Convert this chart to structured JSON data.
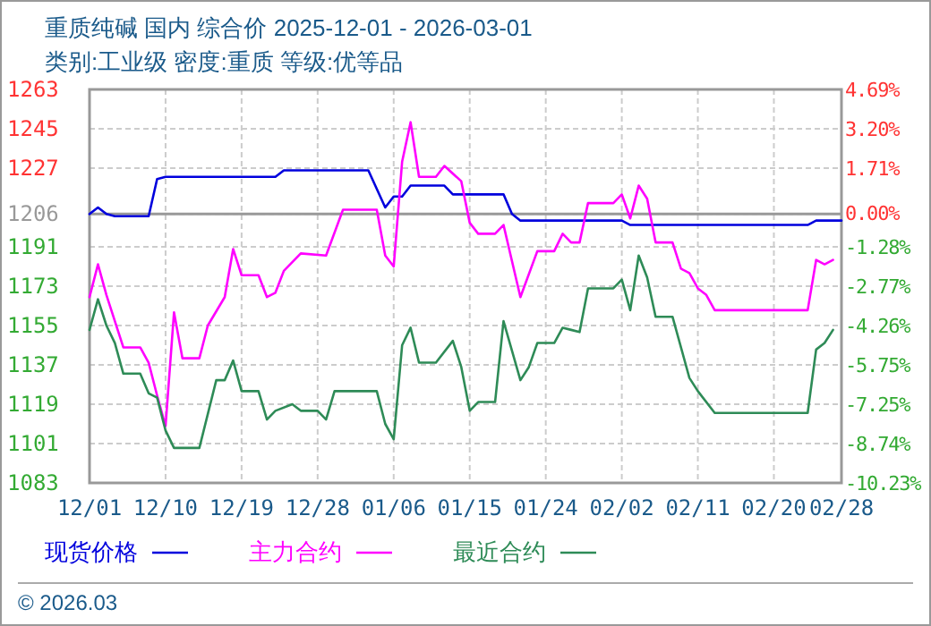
{
  "chart_data": {
    "type": "line",
    "title": "重质纯碱 国内 综合价 2025-12-01 - 2026-03-01",
    "subtitle": "类别:工业级 密度:重质 等级:优等品",
    "annotations": [
      "© 2026.03"
    ],
    "xlim": [
      "2025-12-01",
      "2026-02-28"
    ],
    "xticks": [
      {
        "value": "2025-12-01",
        "label": "12/01"
      },
      {
        "value": "2025-12-10",
        "label": "12/10"
      },
      {
        "value": "2025-12-19",
        "label": "12/19"
      },
      {
        "value": "2025-12-28",
        "label": "12/28"
      },
      {
        "value": "2026-01-06",
        "label": "01/06"
      },
      {
        "value": "2026-01-15",
        "label": "01/15"
      },
      {
        "value": "2026-01-24",
        "label": "01/24"
      },
      {
        "value": "2026-02-02",
        "label": "02/02"
      },
      {
        "value": "2026-02-11",
        "label": "02/11"
      },
      {
        "value": "2026-02-20",
        "label": "02/20"
      },
      {
        "value": "2026-02-28",
        "label": "02/28"
      }
    ],
    "ylim": [
      1083,
      1263
    ],
    "yticks": [
      1083,
      1101,
      1119,
      1137,
      1155,
      1173,
      1191,
      1206,
      1227,
      1245,
      1263
    ],
    "y2lim": [
      -10.23,
      4.69
    ],
    "y2ticks": [
      {
        "value": -10.23,
        "label": "-10.23%"
      },
      {
        "value": -8.74,
        "label": "-8.74%"
      },
      {
        "value": -7.25,
        "label": "-7.25%"
      },
      {
        "value": -5.75,
        "label": "-5.75%"
      },
      {
        "value": -4.26,
        "label": "-4.26%"
      },
      {
        "value": -2.77,
        "label": "-2.77%"
      },
      {
        "value": -1.28,
        "label": "-1.28%"
      },
      {
        "value": 0,
        "label": "0.00%"
      },
      {
        "value": 1.71,
        "label": "1.71%"
      },
      {
        "value": 3.2,
        "label": "3.20%"
      },
      {
        "value": 4.69,
        "label": "4.69%"
      }
    ],
    "ref_lines": [
      {
        "axis": "y",
        "value": 1206,
        "color": "#999999"
      }
    ],
    "grid": true,
    "legend": "bottom",
    "line_style": "solid",
    "series": [
      {
        "name": "现货价格",
        "color": "#0000dd",
        "x": [
          "2025-12-01",
          "2025-12-02",
          "2025-12-03",
          "2025-12-04",
          "2025-12-08",
          "2025-12-09",
          "2025-12-10",
          "2025-12-23",
          "2025-12-24",
          "2026-01-03",
          "2026-01-05",
          "2026-01-06",
          "2026-01-07",
          "2026-01-08",
          "2026-01-12",
          "2026-01-13",
          "2026-01-19",
          "2026-01-20",
          "2026-01-21",
          "2026-02-02",
          "2026-02-03",
          "2026-02-24",
          "2026-02-25",
          "2026-02-28"
        ],
        "values": [
          1206,
          1209,
          1206,
          1205,
          1205,
          1222,
          1223,
          1223,
          1226,
          1226,
          1209,
          1214,
          1214,
          1219,
          1219,
          1215,
          1215,
          1206,
          1203,
          1203,
          1201,
          1201,
          1203,
          1203
        ]
      },
      {
        "name": "主力合约",
        "color": "#ff00ff",
        "x": [
          "2025-12-01",
          "2025-12-02",
          "2025-12-03",
          "2025-12-05",
          "2025-12-07",
          "2025-12-08",
          "2025-12-09",
          "2025-12-10",
          "2025-12-11",
          "2025-12-12",
          "2025-12-14",
          "2025-12-15",
          "2025-12-17",
          "2025-12-18",
          "2025-12-19",
          "2025-12-21",
          "2025-12-22",
          "2025-12-23",
          "2025-12-24",
          "2025-12-26",
          "2025-12-29",
          "2025-12-31",
          "2026-01-04",
          "2026-01-05",
          "2026-01-06",
          "2026-01-07",
          "2026-01-08",
          "2026-01-09",
          "2026-01-11",
          "2026-01-12",
          "2026-01-14",
          "2026-01-15",
          "2026-01-16",
          "2026-01-18",
          "2026-01-19",
          "2026-01-21",
          "2026-01-23",
          "2026-01-25",
          "2026-01-26",
          "2026-01-27",
          "2026-01-28",
          "2026-01-29",
          "2026-02-01",
          "2026-02-02",
          "2026-02-03",
          "2026-02-04",
          "2026-02-05",
          "2026-02-06",
          "2026-02-08",
          "2026-02-09",
          "2026-02-10",
          "2026-02-11",
          "2026-02-12",
          "2026-02-13",
          "2026-02-24",
          "2026-02-25",
          "2026-02-26",
          "2026-02-27"
        ],
        "values": [
          1168,
          1183,
          1169,
          1145,
          1145,
          1138,
          1123,
          1109,
          1161,
          1140,
          1140,
          1155,
          1168,
          1190,
          1178,
          1178,
          1168,
          1170,
          1180,
          1188,
          1187,
          1208,
          1208,
          1187,
          1182,
          1230,
          1248,
          1223,
          1223,
          1228,
          1221,
          1202,
          1197,
          1197,
          1201,
          1168,
          1189,
          1189,
          1197,
          1193,
          1193,
          1211,
          1211,
          1215,
          1204,
          1219,
          1213,
          1193,
          1193,
          1181,
          1179,
          1172,
          1169,
          1162,
          1162,
          1185,
          1183,
          1185
        ]
      },
      {
        "name": "最近合约",
        "color": "#2e8b57",
        "x": [
          "2025-12-01",
          "2025-12-02",
          "2025-12-03",
          "2025-12-04",
          "2025-12-05",
          "2025-12-07",
          "2025-12-08",
          "2025-12-09",
          "2025-12-10",
          "2025-12-11",
          "2025-12-14",
          "2025-12-16",
          "2025-12-17",
          "2025-12-18",
          "2025-12-19",
          "2025-12-21",
          "2025-12-22",
          "2025-12-23",
          "2025-12-25",
          "2025-12-26",
          "2025-12-28",
          "2025-12-29",
          "2025-12-30",
          "2026-01-04",
          "2026-01-05",
          "2026-01-06",
          "2026-01-07",
          "2026-01-08",
          "2026-01-09",
          "2026-01-11",
          "2026-01-13",
          "2026-01-14",
          "2026-01-15",
          "2026-01-16",
          "2026-01-18",
          "2026-01-19",
          "2026-01-21",
          "2026-01-22",
          "2026-01-23",
          "2026-01-25",
          "2026-01-26",
          "2026-01-27",
          "2026-01-28",
          "2026-01-29",
          "2026-02-01",
          "2026-02-02",
          "2026-02-03",
          "2026-02-04",
          "2026-02-05",
          "2026-02-06",
          "2026-02-08",
          "2026-02-10",
          "2026-02-11",
          "2026-02-13",
          "2026-02-24",
          "2026-02-25",
          "2026-02-26",
          "2026-02-27"
        ],
        "values": [
          1153,
          1167,
          1155,
          1147,
          1133,
          1133,
          1124,
          1122,
          1107,
          1099,
          1099,
          1130,
          1130,
          1139,
          1125,
          1125,
          1112,
          1116,
          1119,
          1116,
          1116,
          1112,
          1125,
          1125,
          1110,
          1103,
          1146,
          1154,
          1138,
          1138,
          1148,
          1136,
          1116,
          1120,
          1120,
          1157,
          1130,
          1136,
          1147,
          1147,
          1154,
          1153,
          1152,
          1172,
          1172,
          1176,
          1162,
          1187,
          1177,
          1159,
          1159,
          1131,
          1125,
          1115,
          1115,
          1144,
          1147,
          1153
        ]
      }
    ]
  }
}
